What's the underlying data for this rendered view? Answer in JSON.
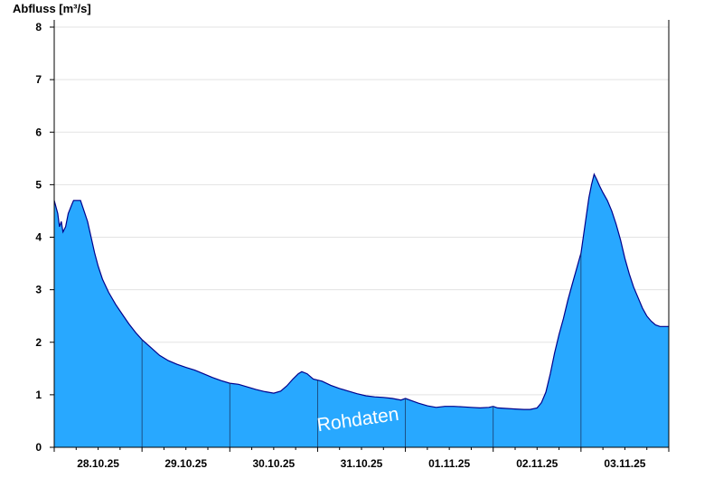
{
  "chart_data": {
    "type": "area",
    "ylabel": "Abfluss [m³/s]",
    "ylim": [
      0,
      8
    ],
    "yticks": [
      0,
      1,
      2,
      3,
      4,
      5,
      6,
      7,
      8
    ],
    "xlim": [
      0,
      7
    ],
    "xunit": "days starting 28.10.25 00:00",
    "xticks": [
      {
        "x": 0.5,
        "label": "28.10.25"
      },
      {
        "x": 1.5,
        "label": "29.10.25"
      },
      {
        "x": 2.5,
        "label": "30.10.25"
      },
      {
        "x": 3.5,
        "label": "31.10.25"
      },
      {
        "x": 4.5,
        "label": "01.11.25"
      },
      {
        "x": 5.5,
        "label": "02.11.25"
      },
      {
        "x": 6.5,
        "label": "03.11.25"
      }
    ],
    "grid": "horizontal",
    "fill_color": "#28A8FF",
    "line_color": "#00008B",
    "annotation": "Rohdaten",
    "series": [
      {
        "values": [
          [
            0.0,
            4.7
          ],
          [
            0.04,
            4.45
          ],
          [
            0.06,
            4.2
          ],
          [
            0.08,
            4.3
          ],
          [
            0.1,
            4.1
          ],
          [
            0.13,
            4.2
          ],
          [
            0.16,
            4.45
          ],
          [
            0.2,
            4.62
          ],
          [
            0.22,
            4.7
          ],
          [
            0.3,
            4.7
          ],
          [
            0.34,
            4.5
          ],
          [
            0.38,
            4.3
          ],
          [
            0.42,
            4.0
          ],
          [
            0.46,
            3.7
          ],
          [
            0.5,
            3.45
          ],
          [
            0.55,
            3.2
          ],
          [
            0.62,
            2.95
          ],
          [
            0.7,
            2.72
          ],
          [
            0.78,
            2.52
          ],
          [
            0.85,
            2.35
          ],
          [
            0.93,
            2.18
          ],
          [
            1.0,
            2.05
          ],
          [
            1.1,
            1.9
          ],
          [
            1.2,
            1.75
          ],
          [
            1.3,
            1.65
          ],
          [
            1.4,
            1.58
          ],
          [
            1.5,
            1.52
          ],
          [
            1.6,
            1.47
          ],
          [
            1.7,
            1.4
          ],
          [
            1.8,
            1.33
          ],
          [
            1.9,
            1.27
          ],
          [
            2.0,
            1.22
          ],
          [
            2.1,
            1.2
          ],
          [
            2.2,
            1.15
          ],
          [
            2.3,
            1.1
          ],
          [
            2.4,
            1.06
          ],
          [
            2.5,
            1.03
          ],
          [
            2.58,
            1.07
          ],
          [
            2.65,
            1.17
          ],
          [
            2.72,
            1.3
          ],
          [
            2.78,
            1.4
          ],
          [
            2.82,
            1.44
          ],
          [
            2.88,
            1.4
          ],
          [
            2.95,
            1.3
          ],
          [
            3.05,
            1.26
          ],
          [
            3.15,
            1.18
          ],
          [
            3.25,
            1.12
          ],
          [
            3.35,
            1.07
          ],
          [
            3.45,
            1.02
          ],
          [
            3.55,
            0.98
          ],
          [
            3.65,
            0.96
          ],
          [
            3.75,
            0.95
          ],
          [
            3.85,
            0.93
          ],
          [
            3.95,
            0.9
          ],
          [
            4.0,
            0.93
          ],
          [
            4.05,
            0.9
          ],
          [
            4.15,
            0.84
          ],
          [
            4.25,
            0.79
          ],
          [
            4.35,
            0.76
          ],
          [
            4.45,
            0.78
          ],
          [
            4.55,
            0.78
          ],
          [
            4.65,
            0.77
          ],
          [
            4.75,
            0.76
          ],
          [
            4.85,
            0.75
          ],
          [
            4.95,
            0.76
          ],
          [
            5.0,
            0.78
          ],
          [
            5.05,
            0.75
          ],
          [
            5.15,
            0.74
          ],
          [
            5.25,
            0.73
          ],
          [
            5.35,
            0.72
          ],
          [
            5.42,
            0.72
          ],
          [
            5.5,
            0.75
          ],
          [
            5.55,
            0.85
          ],
          [
            5.6,
            1.05
          ],
          [
            5.65,
            1.4
          ],
          [
            5.7,
            1.8
          ],
          [
            5.75,
            2.15
          ],
          [
            5.8,
            2.45
          ],
          [
            5.85,
            2.8
          ],
          [
            5.9,
            3.1
          ],
          [
            5.95,
            3.4
          ],
          [
            6.0,
            3.7
          ],
          [
            6.03,
            4.05
          ],
          [
            6.06,
            4.4
          ],
          [
            6.09,
            4.75
          ],
          [
            6.12,
            5.0
          ],
          [
            6.15,
            5.2
          ],
          [
            6.18,
            5.1
          ],
          [
            6.21,
            4.98
          ],
          [
            6.25,
            4.85
          ],
          [
            6.3,
            4.7
          ],
          [
            6.35,
            4.5
          ],
          [
            6.4,
            4.25
          ],
          [
            6.45,
            3.95
          ],
          [
            6.5,
            3.6
          ],
          [
            6.55,
            3.3
          ],
          [
            6.6,
            3.05
          ],
          [
            6.65,
            2.85
          ],
          [
            6.7,
            2.65
          ],
          [
            6.75,
            2.5
          ],
          [
            6.8,
            2.4
          ],
          [
            6.85,
            2.33
          ],
          [
            6.9,
            2.3
          ],
          [
            7.0,
            2.3
          ]
        ]
      }
    ]
  }
}
